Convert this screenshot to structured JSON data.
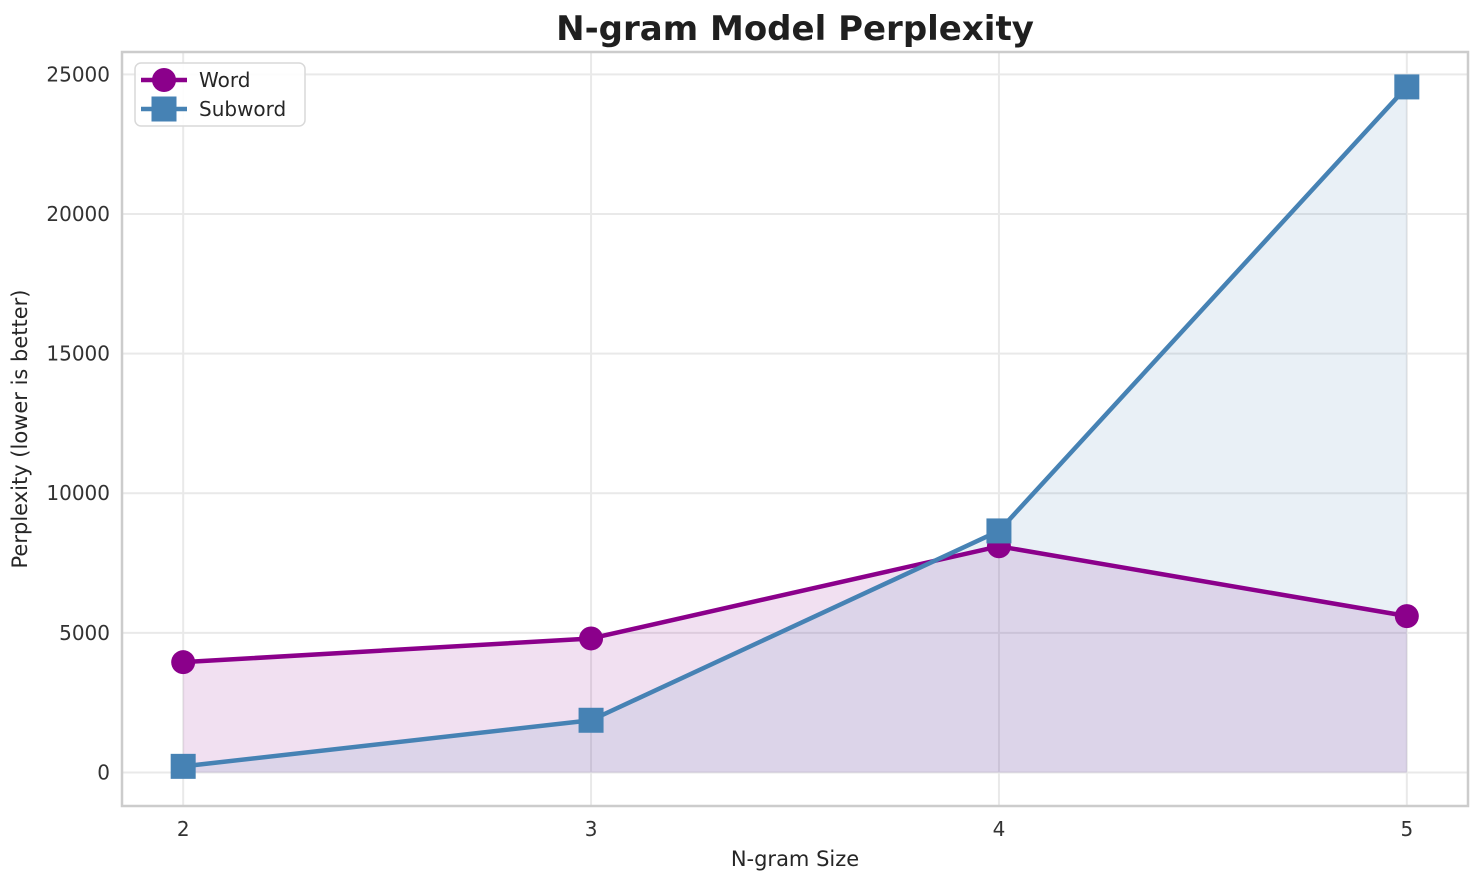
{
  "figure": {
    "title": "N-gram Model Perplexity",
    "xlabel": "N-gram Size",
    "ylabel": "Perplexity (lower is better)"
  },
  "chart_data": {
    "type": "line",
    "title": "N-gram Model Perplexity",
    "xlabel": "N-gram Size",
    "ylabel": "Perplexity (lower is better)",
    "x": [
      2,
      3,
      4,
      5
    ],
    "xtick_labels": [
      "2",
      "3",
      "4",
      "5"
    ],
    "yticks": [
      0,
      5000,
      10000,
      15000,
      20000,
      25000
    ],
    "ytick_labels": [
      "0",
      "5000",
      "10000",
      "15000",
      "20000",
      "25000"
    ],
    "xlim": [
      1.85,
      5.15
    ],
    "ylim": [
      -1200,
      25800
    ],
    "grid": true,
    "area_fill_to_zero": true,
    "legend_position": "upper-left",
    "series": [
      {
        "name": "Word",
        "marker": "circle",
        "color": "#8B008B",
        "fill_opacity": 0.12,
        "values": [
          3950,
          4800,
          8100,
          5600
        ]
      },
      {
        "name": "Subword",
        "marker": "square",
        "color": "#4682B4",
        "fill_opacity": 0.12,
        "values": [
          220,
          1870,
          8650,
          24550
        ]
      }
    ],
    "colors": {
      "grid": "#e9e9e9",
      "spine": "#cccccc",
      "legend_border": "#d9d9d9",
      "background": "#ffffff"
    }
  }
}
